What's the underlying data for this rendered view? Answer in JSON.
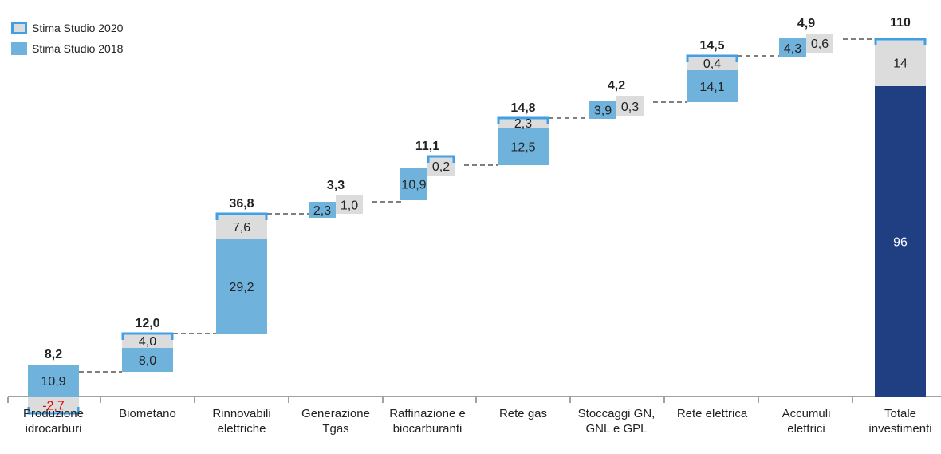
{
  "legend": {
    "s2020": "Stima Studio 2020",
    "s2018": "Stima Studio 2018"
  },
  "chart_data": {
    "type": "bar",
    "subtype": "waterfall",
    "categories": [
      [
        "Produzione",
        "idrocarburi"
      ],
      [
        "Biometano"
      ],
      [
        "Rinnovabili",
        "elettriche"
      ],
      [
        "Generazione",
        "Tgas"
      ],
      [
        "Raffinazione e",
        "biocarburanti"
      ],
      [
        "Rete gas"
      ],
      [
        "Stoccaggi GN,",
        "GNL e GPL"
      ],
      [
        "Rete elettrica"
      ],
      [
        "Accumuli",
        "elettrici"
      ],
      [
        "Totale",
        "investimenti"
      ]
    ],
    "series": [
      {
        "name": "Stima Studio 2018",
        "values": [
          10.9,
          8.0,
          29.2,
          2.3,
          10.9,
          12.5,
          3.9,
          14.1,
          4.3,
          96
        ]
      },
      {
        "name": "Stima Studio 2020",
        "values": [
          -2.7,
          4.0,
          7.6,
          1.0,
          0.2,
          2.3,
          0.3,
          0.4,
          0.6,
          14
        ]
      }
    ],
    "labels_2018": [
      "10,9",
      "8,0",
      "29,2",
      "2,3",
      "10,9",
      "12,5",
      "3,9",
      "14,1",
      "4,3",
      "96"
    ],
    "labels_2020": [
      "-2,7",
      "4,0",
      "7,6",
      "1,0",
      "0,2",
      "2,3",
      "0,3",
      "0,4",
      "0,6",
      "14"
    ],
    "totals": [
      8.2,
      12.0,
      36.8,
      3.3,
      11.1,
      14.8,
      4.2,
      14.5,
      4.9,
      110
    ],
    "total_labels": [
      "8,2",
      "12,0",
      "36,8",
      "3,3",
      "11,1",
      "14,8",
      "4,2",
      "14,5",
      "4,9",
      "110"
    ],
    "colors": {
      "s2018": "#6fb3dc",
      "s2020_fill": "#dcdcdc",
      "s2020_border": "#3fa0e6",
      "total": "#1f3f82",
      "negative_text": "#e00000"
    },
    "legend_position": "top-left",
    "grid": false
  }
}
